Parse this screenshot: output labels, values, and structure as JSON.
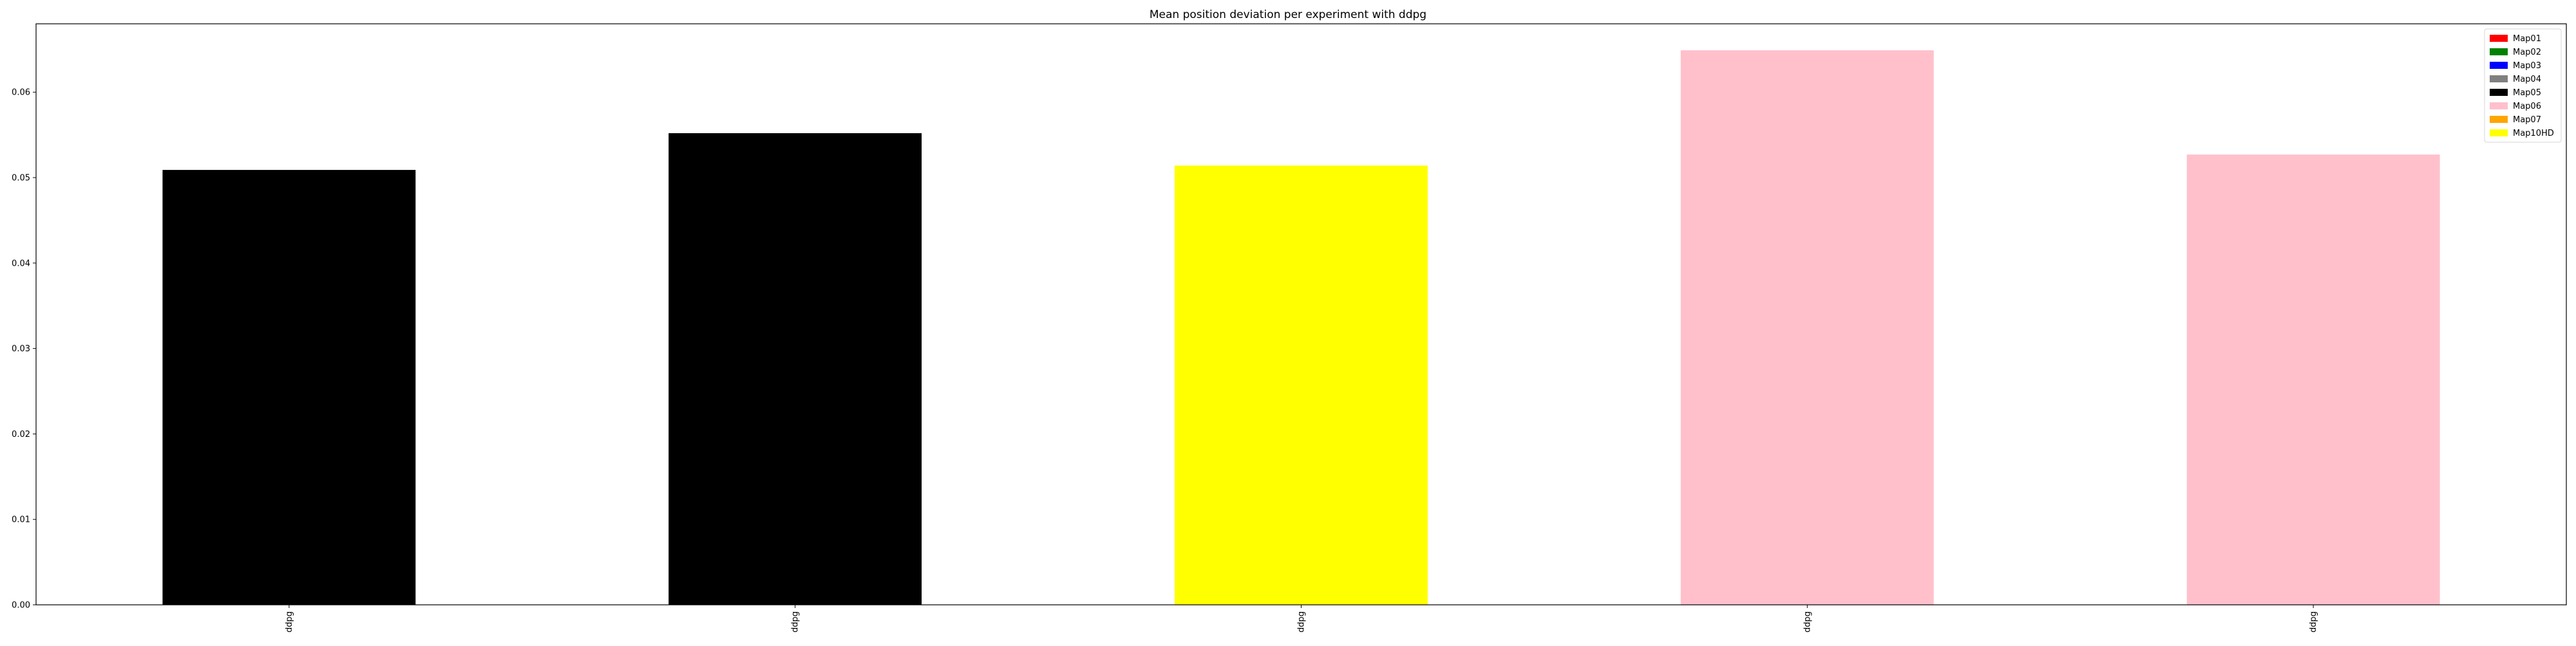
{
  "chart_data": {
    "type": "bar",
    "title": "Mean position deviation per experiment with ddpg",
    "xlabel": "",
    "ylabel": "",
    "categories": [
      "ddpg",
      "ddpg",
      "ddpg",
      "ddpg",
      "ddpg"
    ],
    "values": [
      0.0509,
      0.0552,
      0.0514,
      0.0649,
      0.0527
    ],
    "bar_colors": [
      "#000000",
      "#000000",
      "#ffff00",
      "#ffc0cb",
      "#ffc0cb"
    ],
    "ylim": [
      0,
      0.068
    ],
    "yticks": [
      0.0,
      0.01,
      0.02,
      0.03,
      0.04,
      0.05,
      0.06
    ],
    "ytick_labels": [
      "0.00",
      "0.01",
      "0.02",
      "0.03",
      "0.04",
      "0.05",
      "0.06"
    ],
    "grid": false,
    "legend_position": "top-right",
    "legend": [
      {
        "name": "Map01",
        "color": "#ff0000"
      },
      {
        "name": "Map02",
        "color": "#008000"
      },
      {
        "name": "Map03",
        "color": "#0000ff"
      },
      {
        "name": "Map04",
        "color": "#808080"
      },
      {
        "name": "Map05",
        "color": "#000000"
      },
      {
        "name": "Map06",
        "color": "#ffc0cb"
      },
      {
        "name": "Map07",
        "color": "#ffa500"
      },
      {
        "name": "Map10HD",
        "color": "#ffff00"
      }
    ]
  }
}
